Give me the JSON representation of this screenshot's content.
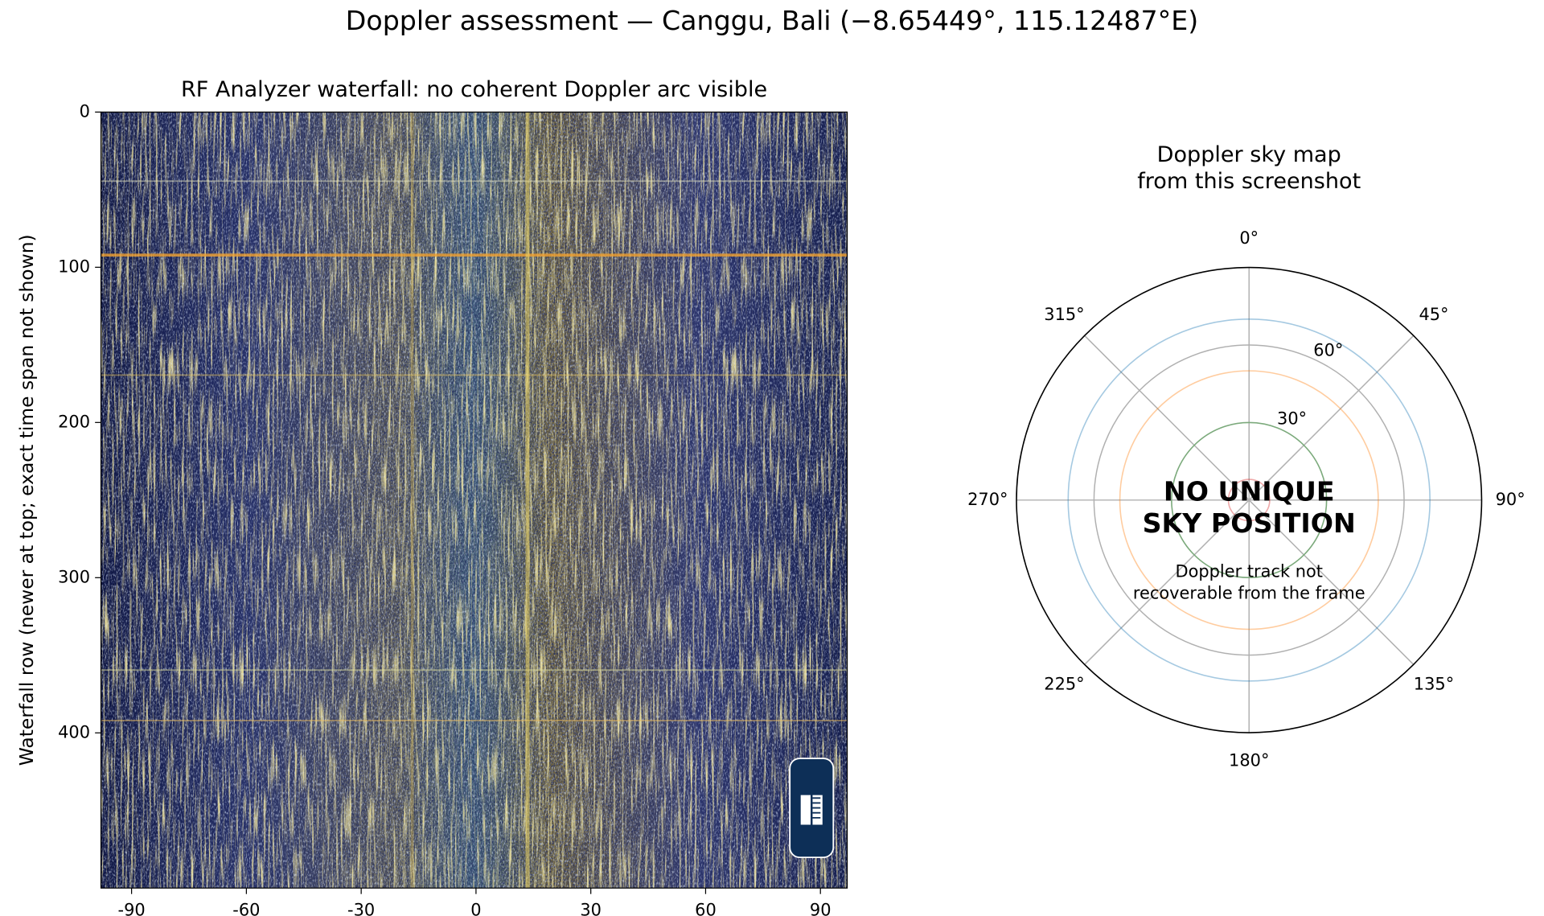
{
  "title": "Doppler assessment — Canggu, Bali (−8.65449°, 115.12487°E)",
  "chart_data": [
    {
      "type": "image",
      "title": "RF Analyzer waterfall: no coherent Doppler arc visible",
      "y_label": "Waterfall row (newer at top; exact time span not shown)",
      "xlim": [
        -98,
        97
      ],
      "xticks": [
        -90,
        -60,
        -30,
        0,
        30,
        60,
        90
      ],
      "ylim": [
        500,
        0
      ],
      "yticks": [
        0,
        100,
        200,
        300,
        400
      ]
    },
    {
      "type": "polar",
      "title": [
        "Doppler sky map",
        "from this screenshot"
      ],
      "theta_zero": "N",
      "theta_direction": "clockwise",
      "thetaticks": [
        {
          "value": 0,
          "label": "0°"
        },
        {
          "value": 45,
          "label": "45°"
        },
        {
          "value": 90,
          "label": "90°"
        },
        {
          "value": 135,
          "label": "135°"
        },
        {
          "value": 180,
          "label": "180°"
        },
        {
          "value": 225,
          "label": "225°"
        },
        {
          "value": 270,
          "label": "270°"
        },
        {
          "value": 315,
          "label": "315°"
        }
      ],
      "rlim": [
        0,
        90
      ],
      "rticks": [
        {
          "value": 30,
          "label": "30°"
        },
        {
          "value": 60,
          "label": "60°"
        }
      ],
      "rings": [
        8,
        30,
        50,
        70
      ],
      "ring_colors": [
        "#d62728",
        "#2ca02c",
        "#ff7f0e",
        "#1f77b4"
      ],
      "grid": true,
      "annotation": [
        "NO UNIQUE",
        "SKY POSITION"
      ],
      "note": [
        "Doppler track not",
        "recoverable from the frame"
      ]
    }
  ]
}
